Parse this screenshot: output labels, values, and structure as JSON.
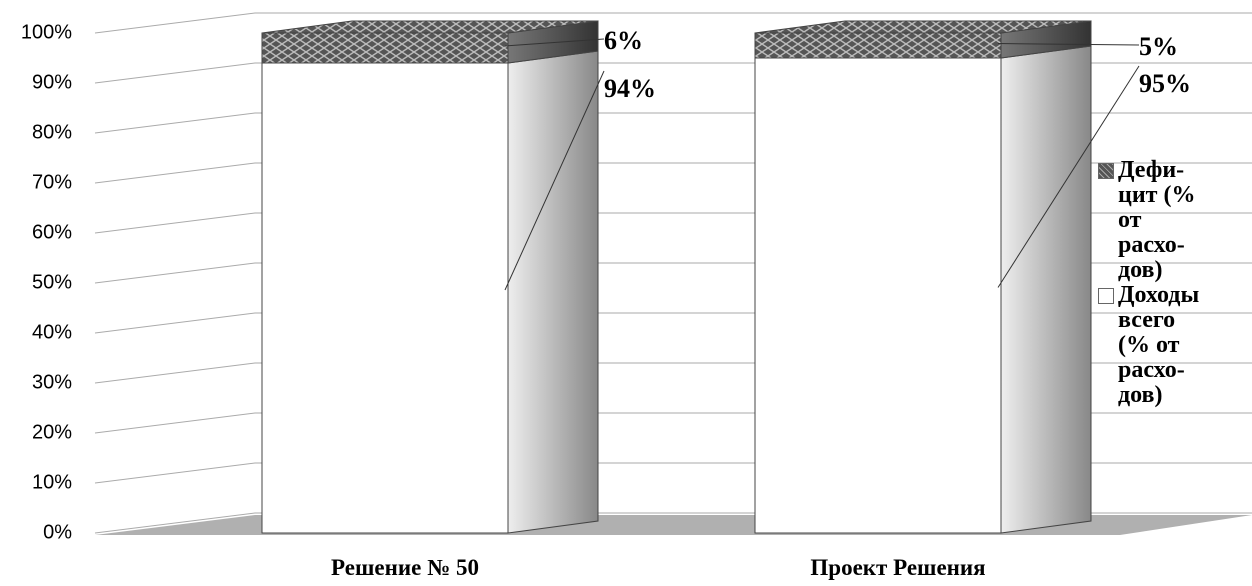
{
  "chart_data": {
    "type": "bar3d_stacked",
    "categories": [
      "Решение № 50",
      "Проект Решения"
    ],
    "series": [
      {
        "name": "Доходы\nвсего\n(% от\nрасхо-\nдов)",
        "color": "#ffffff",
        "values": [
          94,
          95
        ],
        "value_labels": [
          "94%",
          "95%"
        ]
      },
      {
        "name": "Дефи-\nцит (%\nот\nрасхо-\nдов)",
        "color": "#555555",
        "values": [
          6,
          5
        ],
        "value_labels": [
          "6%",
          "5%"
        ]
      }
    ],
    "ylim": [
      0,
      100
    ],
    "yticks": [
      {
        "value": 0,
        "label": "0%"
      },
      {
        "value": 10,
        "label": "10%"
      },
      {
        "value": 20,
        "label": "20%"
      },
      {
        "value": 30,
        "label": "30%"
      },
      {
        "value": 40,
        "label": "40%"
      },
      {
        "value": 50,
        "label": "50%"
      },
      {
        "value": 60,
        "label": "60%"
      },
      {
        "value": 70,
        "label": "70%"
      },
      {
        "value": 80,
        "label": "80%"
      },
      {
        "value": 90,
        "label": "90%"
      },
      {
        "value": 100,
        "label": "100%"
      }
    ],
    "grid": true
  }
}
